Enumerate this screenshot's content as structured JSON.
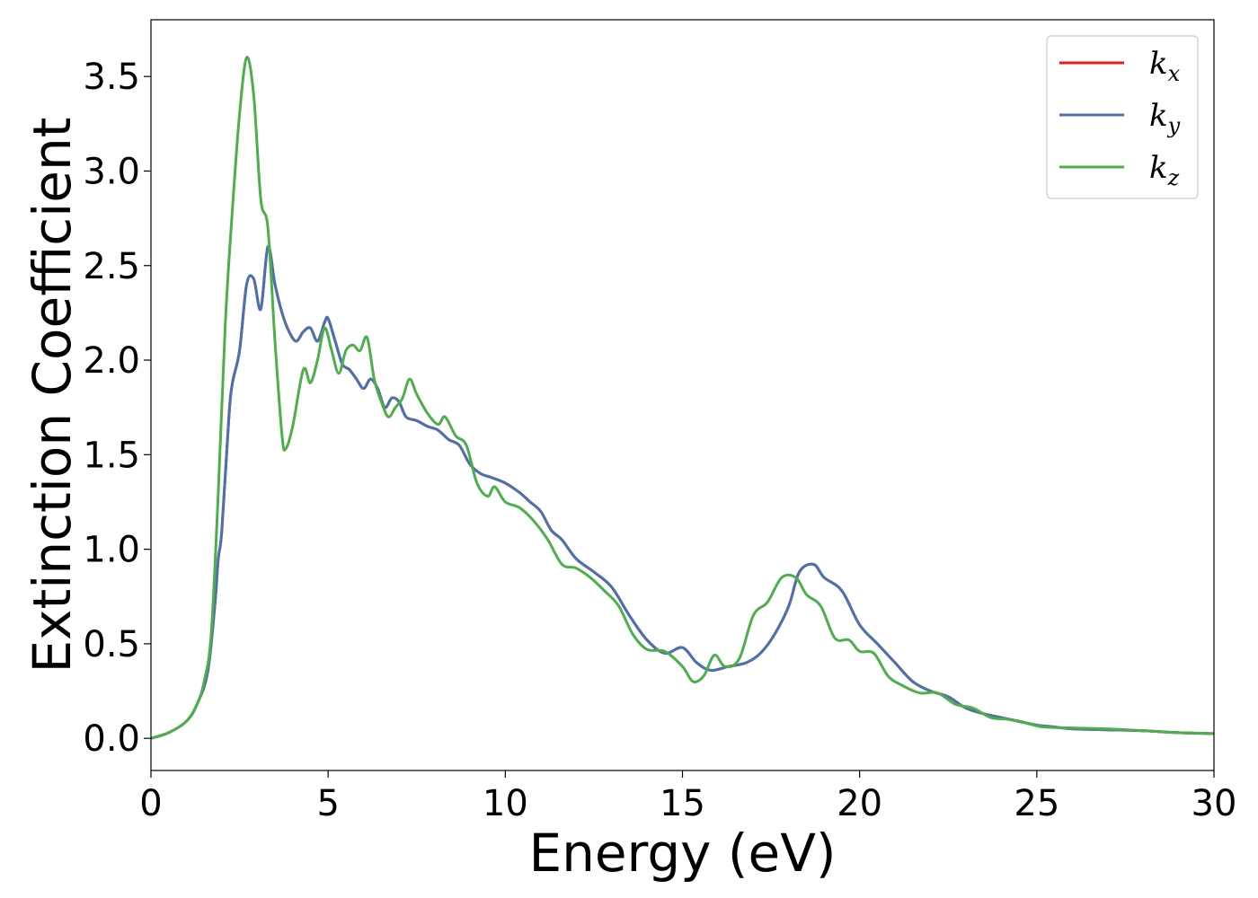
{
  "chart_data": {
    "type": "line",
    "title": "",
    "xlabel": "Energy (eV)",
    "ylabel": "Extinction Coefficient",
    "xlim": [
      0,
      30
    ],
    "ylim": [
      -0.17,
      3.8
    ],
    "xticks": [
      0,
      5,
      10,
      15,
      20,
      25,
      30
    ],
    "xtick_labels": [
      "0",
      "5",
      "10",
      "15",
      "20",
      "25",
      "30"
    ],
    "yticks": [
      0.0,
      0.5,
      1.0,
      1.5,
      2.0,
      2.5,
      3.0,
      3.5
    ],
    "ytick_labels": [
      "0.0",
      "0.5",
      "1.0",
      "1.5",
      "2.0",
      "2.5",
      "3.0",
      "3.5"
    ],
    "grid": false,
    "legend_position": "top-right",
    "series": [
      {
        "name": "k",
        "subscript": "x",
        "color": "#e41a1c",
        "x": [
          0,
          0.5,
          1.0,
          1.3,
          1.6,
          1.8,
          1.9,
          2.0,
          2.2,
          2.3,
          2.5,
          2.7,
          2.9,
          3.1,
          3.3,
          3.5,
          3.7,
          3.9,
          4.1,
          4.3,
          4.5,
          4.7,
          4.9,
          5.0,
          5.2,
          5.4,
          5.6,
          5.8,
          6.0,
          6.2,
          6.4,
          6.6,
          6.8,
          7.0,
          7.2,
          7.5,
          7.8,
          8.1,
          8.4,
          8.7,
          9.0,
          9.3,
          9.6,
          10.0,
          10.4,
          10.7,
          11.0,
          11.3,
          11.6,
          12.0,
          12.5,
          13.0,
          13.5,
          14.0,
          14.5,
          15.0,
          15.4,
          15.8,
          16.3,
          16.8,
          17.2,
          17.6,
          18.0,
          18.3,
          18.7,
          19.0,
          19.5,
          20.0,
          20.5,
          21.0,
          21.5,
          22.0,
          22.5,
          23.0,
          23.5,
          24.0,
          24.5,
          25.0,
          25.5,
          26.0,
          27.0,
          28.0,
          29.0,
          30.0
        ],
        "y": [
          0,
          0.03,
          0.09,
          0.18,
          0.35,
          0.7,
          0.95,
          1.1,
          1.7,
          1.88,
          2.05,
          2.4,
          2.43,
          2.27,
          2.6,
          2.4,
          2.25,
          2.15,
          2.1,
          2.15,
          2.17,
          2.1,
          2.2,
          2.22,
          2.1,
          1.98,
          1.95,
          1.9,
          1.85,
          1.9,
          1.85,
          1.75,
          1.8,
          1.78,
          1.7,
          1.68,
          1.65,
          1.63,
          1.58,
          1.55,
          1.45,
          1.4,
          1.38,
          1.35,
          1.3,
          1.25,
          1.2,
          1.1,
          1.05,
          0.95,
          0.88,
          0.8,
          0.65,
          0.52,
          0.45,
          0.48,
          0.4,
          0.36,
          0.38,
          0.4,
          0.45,
          0.55,
          0.7,
          0.88,
          0.92,
          0.85,
          0.78,
          0.6,
          0.5,
          0.4,
          0.3,
          0.25,
          0.22,
          0.16,
          0.13,
          0.11,
          0.09,
          0.07,
          0.06,
          0.05,
          0.045,
          0.04,
          0.03,
          0.025
        ]
      },
      {
        "name": "k",
        "subscript": "y",
        "color": "#4a72b0",
        "x": [
          0,
          0.5,
          1.0,
          1.3,
          1.6,
          1.8,
          1.9,
          2.0,
          2.2,
          2.3,
          2.5,
          2.7,
          2.9,
          3.1,
          3.3,
          3.5,
          3.7,
          3.9,
          4.1,
          4.3,
          4.5,
          4.7,
          4.9,
          5.0,
          5.2,
          5.4,
          5.6,
          5.8,
          6.0,
          6.2,
          6.4,
          6.6,
          6.8,
          7.0,
          7.2,
          7.5,
          7.8,
          8.1,
          8.4,
          8.7,
          9.0,
          9.3,
          9.6,
          10.0,
          10.4,
          10.7,
          11.0,
          11.3,
          11.6,
          12.0,
          12.5,
          13.0,
          13.5,
          14.0,
          14.5,
          15.0,
          15.4,
          15.8,
          16.3,
          16.8,
          17.2,
          17.6,
          18.0,
          18.3,
          18.7,
          19.0,
          19.5,
          20.0,
          20.5,
          21.0,
          21.5,
          22.0,
          22.5,
          23.0,
          23.5,
          24.0,
          24.5,
          25.0,
          25.5,
          26.0,
          27.0,
          28.0,
          29.0,
          30.0
        ],
        "y": [
          0,
          0.03,
          0.09,
          0.18,
          0.35,
          0.7,
          0.95,
          1.1,
          1.7,
          1.88,
          2.05,
          2.4,
          2.43,
          2.27,
          2.6,
          2.4,
          2.25,
          2.15,
          2.1,
          2.15,
          2.17,
          2.1,
          2.2,
          2.22,
          2.1,
          1.98,
          1.95,
          1.9,
          1.85,
          1.9,
          1.85,
          1.75,
          1.8,
          1.78,
          1.7,
          1.68,
          1.65,
          1.63,
          1.58,
          1.55,
          1.45,
          1.4,
          1.38,
          1.35,
          1.3,
          1.25,
          1.2,
          1.1,
          1.05,
          0.95,
          0.88,
          0.8,
          0.65,
          0.52,
          0.45,
          0.48,
          0.4,
          0.36,
          0.38,
          0.4,
          0.45,
          0.55,
          0.7,
          0.88,
          0.92,
          0.85,
          0.78,
          0.6,
          0.5,
          0.4,
          0.3,
          0.25,
          0.22,
          0.16,
          0.13,
          0.11,
          0.09,
          0.07,
          0.06,
          0.05,
          0.045,
          0.04,
          0.03,
          0.025
        ]
      },
      {
        "name": "k",
        "subscript": "z",
        "color": "#4daf4a",
        "x": [
          0,
          0.5,
          1.0,
          1.3,
          1.5,
          1.7,
          1.9,
          2.1,
          2.3,
          2.5,
          2.7,
          2.9,
          3.1,
          3.3,
          3.5,
          3.7,
          3.8,
          4.0,
          4.3,
          4.5,
          4.7,
          4.9,
          5.1,
          5.3,
          5.5,
          5.7,
          5.9,
          6.1,
          6.3,
          6.5,
          6.7,
          6.9,
          7.1,
          7.3,
          7.5,
          7.8,
          8.1,
          8.3,
          8.6,
          8.9,
          9.2,
          9.5,
          9.7,
          10.0,
          10.4,
          10.8,
          11.2,
          11.6,
          12.0,
          12.4,
          12.8,
          13.2,
          13.6,
          14.0,
          14.5,
          15.0,
          15.3,
          15.6,
          15.9,
          16.2,
          16.6,
          17.0,
          17.4,
          17.8,
          18.2,
          18.5,
          18.9,
          19.3,
          19.7,
          20.0,
          20.4,
          20.8,
          21.2,
          21.7,
          22.2,
          22.7,
          23.2,
          23.7,
          24.2,
          24.7,
          25.2,
          26.0,
          27.0,
          28.0,
          29.0,
          30.0
        ],
        "y": [
          0,
          0.03,
          0.09,
          0.18,
          0.3,
          0.55,
          1.3,
          2.2,
          2.8,
          3.3,
          3.6,
          3.4,
          2.85,
          2.7,
          2.1,
          1.6,
          1.53,
          1.65,
          1.95,
          1.88,
          2.0,
          2.17,
          2.05,
          1.93,
          2.05,
          2.08,
          2.05,
          2.12,
          1.9,
          1.78,
          1.7,
          1.75,
          1.8,
          1.9,
          1.82,
          1.72,
          1.66,
          1.7,
          1.6,
          1.55,
          1.35,
          1.28,
          1.33,
          1.25,
          1.22,
          1.15,
          1.05,
          0.92,
          0.9,
          0.85,
          0.78,
          0.7,
          0.55,
          0.47,
          0.46,
          0.38,
          0.3,
          0.33,
          0.44,
          0.38,
          0.42,
          0.65,
          0.72,
          0.85,
          0.85,
          0.76,
          0.7,
          0.53,
          0.52,
          0.46,
          0.45,
          0.33,
          0.28,
          0.24,
          0.24,
          0.18,
          0.16,
          0.11,
          0.1,
          0.08,
          0.06,
          0.055,
          0.05,
          0.04,
          0.03,
          0.025
        ]
      }
    ]
  }
}
